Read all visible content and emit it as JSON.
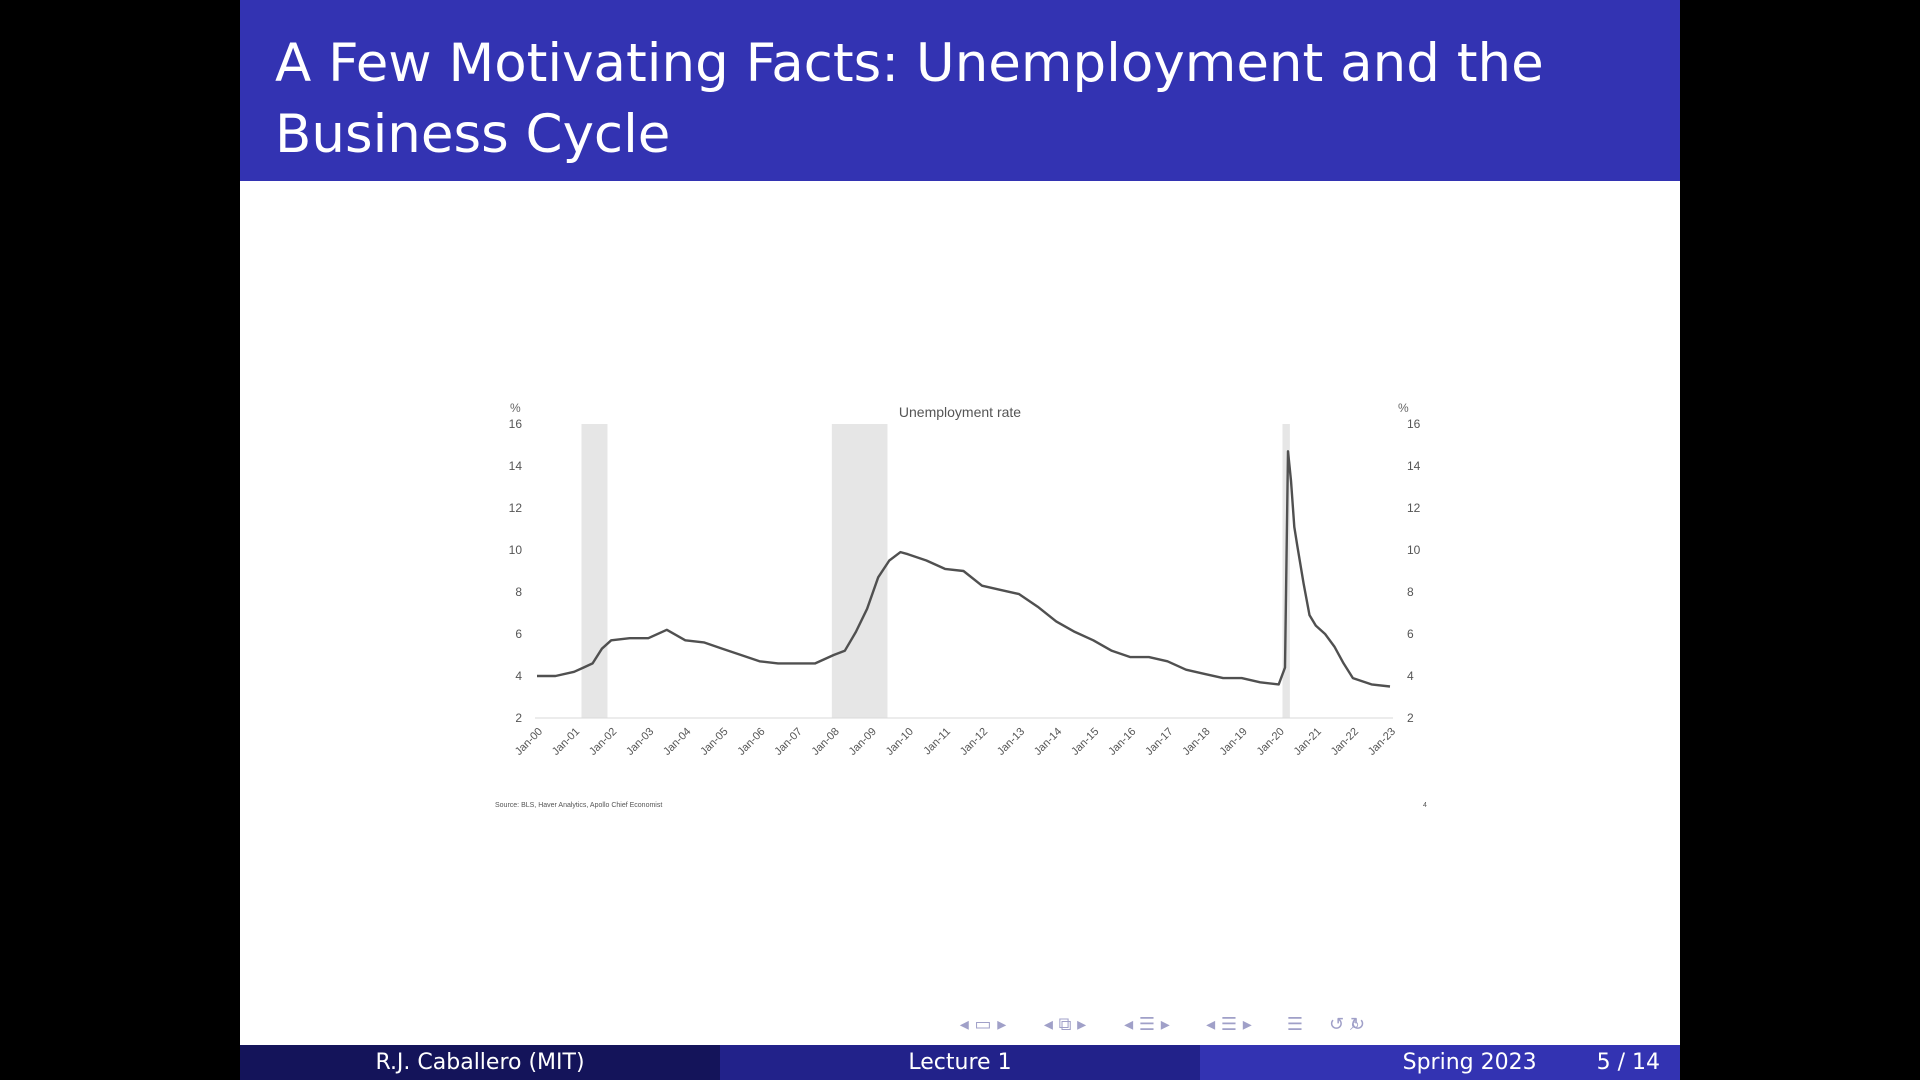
{
  "slide": {
    "title": "A Few Motivating Facts: Unemployment and the Business Cycle"
  },
  "chart_data": {
    "type": "line",
    "title": "Unemployment rate",
    "ylabel_left": "%",
    "ylabel_right": "%",
    "ylim": [
      2,
      16
    ],
    "yticks": [
      2,
      4,
      6,
      8,
      10,
      12,
      14,
      16
    ],
    "xticks": [
      "Jan-00",
      "Jan-01",
      "Jan-02",
      "Jan-03",
      "Jan-04",
      "Jan-05",
      "Jan-06",
      "Jan-07",
      "Jan-08",
      "Jan-09",
      "Jan-10",
      "Jan-11",
      "Jan-12",
      "Jan-13",
      "Jan-14",
      "Jan-15",
      "Jan-16",
      "Jan-17",
      "Jan-18",
      "Jan-19",
      "Jan-20",
      "Jan-21",
      "Jan-22",
      "Jan-23"
    ],
    "recessions": [
      [
        2001.2,
        2001.9
      ],
      [
        2007.95,
        2009.45
      ],
      [
        2020.1,
        2020.3
      ]
    ],
    "series": [
      {
        "values_x_year": [
          2000.0,
          2000.5,
          2001.0,
          2001.25,
          2001.5,
          2001.75,
          2002.0,
          2002.5,
          2003.0,
          2003.5,
          2004.0,
          2004.5,
          2005.0,
          2005.5,
          2006.0,
          2006.5,
          2007.0,
          2007.5,
          2008.0,
          2008.3,
          2008.6,
          2008.9,
          2009.2,
          2009.5,
          2009.8,
          2010.0,
          2010.5,
          2011.0,
          2011.5,
          2012.0,
          2012.5,
          2013.0,
          2013.5,
          2014.0,
          2014.5,
          2015.0,
          2015.5,
          2016.0,
          2016.5,
          2017.0,
          2017.5,
          2018.0,
          2018.5,
          2019.0,
          2019.5,
          2020.0,
          2020.17,
          2020.25,
          2020.33,
          2020.42,
          2020.5,
          2020.67,
          2020.83,
          2021.0,
          2021.25,
          2021.5,
          2021.75,
          2022.0,
          2022.5,
          2023.0
        ],
        "values_y_pct": [
          4.0,
          4.0,
          4.2,
          4.4,
          4.6,
          5.3,
          5.7,
          5.8,
          5.8,
          6.2,
          5.7,
          5.6,
          5.3,
          5.0,
          4.7,
          4.6,
          4.6,
          4.6,
          5.0,
          5.2,
          6.1,
          7.2,
          8.7,
          9.5,
          9.9,
          9.8,
          9.5,
          9.1,
          9.0,
          8.3,
          8.1,
          7.9,
          7.3,
          6.6,
          6.1,
          5.7,
          5.2,
          4.9,
          4.9,
          4.7,
          4.3,
          4.1,
          3.9,
          3.9,
          3.7,
          3.6,
          4.4,
          14.7,
          13.3,
          11.1,
          10.2,
          8.4,
          6.9,
          6.4,
          6.0,
          5.4,
          4.6,
          3.9,
          3.6,
          3.5
        ]
      }
    ],
    "source_note": "Source: BLS, Haver Analytics, Apollo Chief Economist",
    "page_note": "4"
  },
  "footer": {
    "author": "R.J. Caballero  (MIT)",
    "lecture": "Lecture 1",
    "term": "Spring 2023",
    "page": "5 / 14"
  },
  "nav_icons": [
    "nav-frame-icon",
    "nav-section-icon",
    "nav-subsection-icon",
    "nav-sub-subsection-icon",
    "nav-toc-icon",
    "nav-back-forward-icon",
    "nav-search-icon"
  ]
}
